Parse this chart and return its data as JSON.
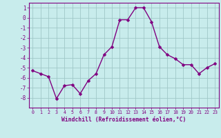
{
  "x": [
    0,
    1,
    2,
    3,
    4,
    5,
    6,
    7,
    8,
    9,
    10,
    11,
    12,
    13,
    14,
    15,
    16,
    17,
    18,
    19,
    20,
    21,
    22,
    23
  ],
  "y": [
    -5.3,
    -5.6,
    -5.9,
    -8.1,
    -6.8,
    -6.7,
    -7.6,
    -6.3,
    -5.6,
    -3.7,
    -2.9,
    -0.2,
    -0.2,
    1.0,
    1.0,
    -0.4,
    -2.9,
    -3.7,
    -4.1,
    -4.7,
    -4.7,
    -5.6,
    -5.0,
    -4.6
  ],
  "line_color": "#800080",
  "marker_color": "#800080",
  "bg_color": "#c8ecec",
  "grid_color": "#a0c8c8",
  "xlabel": "Windchill (Refroidissement éolien,°C)",
  "xlabel_color": "#800080",
  "tick_color": "#800080",
  "spine_color": "#800080",
  "ylim": [
    -9,
    1.5
  ],
  "xlim": [
    -0.5,
    23.5
  ],
  "yticks": [
    1,
    0,
    -1,
    -2,
    -3,
    -4,
    -5,
    -6,
    -7,
    -8
  ],
  "xticks": [
    0,
    1,
    2,
    3,
    4,
    5,
    6,
    7,
    8,
    9,
    10,
    11,
    12,
    13,
    14,
    15,
    16,
    17,
    18,
    19,
    20,
    21,
    22,
    23
  ],
  "xtick_labels": [
    "0",
    "1",
    "2",
    "3",
    "4",
    "5",
    "6",
    "7",
    "8",
    "9",
    "10",
    "11",
    "12",
    "13",
    "14",
    "15",
    "16",
    "17",
    "18",
    "19",
    "20",
    "21",
    "22",
    "23"
  ],
  "line_width": 1.0,
  "marker_size": 2.5,
  "marker_style": "D"
}
